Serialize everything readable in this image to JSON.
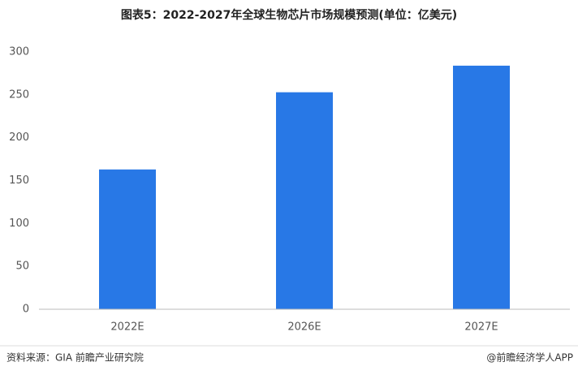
{
  "chart_data": {
    "type": "bar",
    "title": "图表5：2022-2027年全球生物芯片市场规模预测(单位：亿美元)",
    "categories": [
      "2022E",
      "2026E",
      "2027E"
    ],
    "values": [
      163,
      253,
      284
    ],
    "color": "#2878e6",
    "ylim": [
      0,
      300
    ],
    "yticks": [
      0,
      50,
      100,
      150,
      200,
      250,
      300
    ],
    "grid": false
  },
  "footer": {
    "source": "资料来源：GIA 前瞻产业研究院",
    "credit": "@前瞻经济学人APP"
  }
}
